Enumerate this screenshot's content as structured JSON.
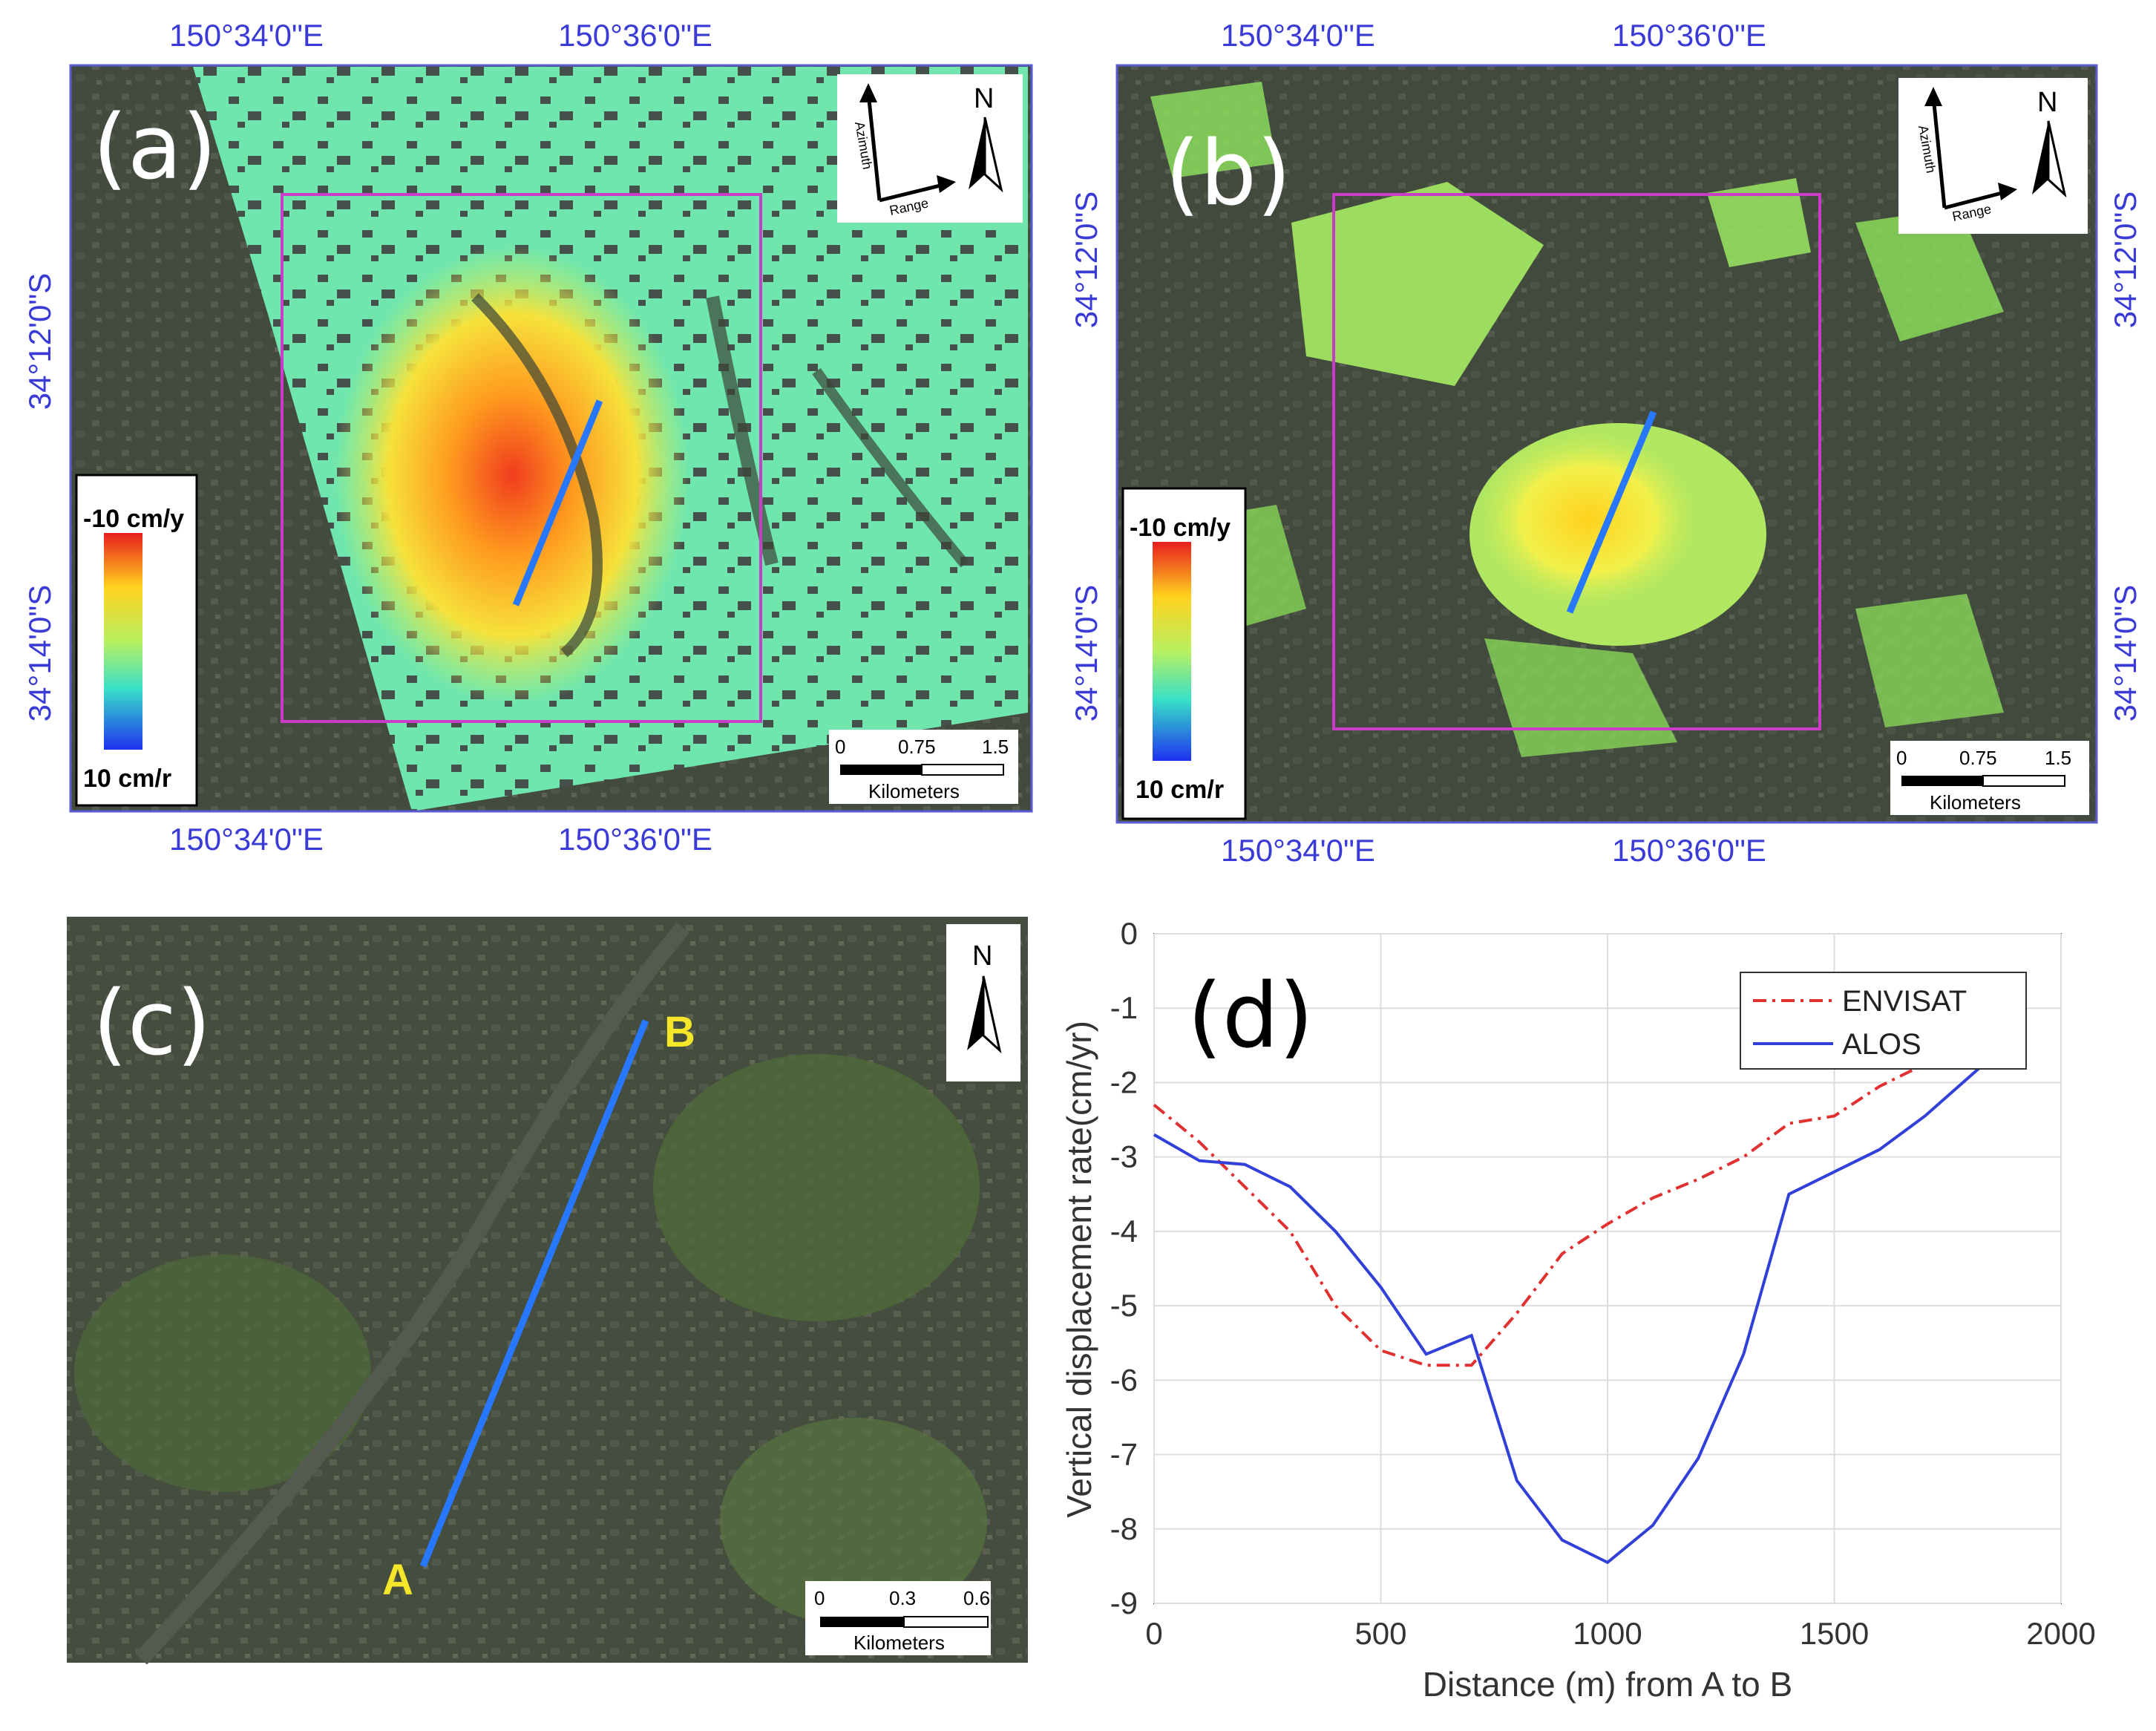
{
  "panels": {
    "a": {
      "label": "(a)",
      "top_lon": [
        "150°34'0\"E",
        "150°36'0\"E"
      ],
      "bottom_lon": [
        "150°34'0\"E",
        "150°36'0\"E"
      ],
      "left_lat": [
        "34°12'0\"S",
        "34°14'0\"S"
      ],
      "colorbar": {
        "top": "-10 cm/y",
        "bottom": "10 cm/r"
      },
      "scalebar": {
        "ticks": [
          "0",
          "0.75",
          "1.5"
        ],
        "unit": "Kilometers"
      },
      "north": "N",
      "azimuth": "Azimuth",
      "range": "Range"
    },
    "b": {
      "label": "(b)",
      "top_lon": [
        "150°34'0\"E",
        "150°36'0\"E"
      ],
      "bottom_lon": [
        "150°34'0\"E",
        "150°36'0\"E"
      ],
      "left_lat": [
        "34°12'0\"S",
        "34°14'0\"S"
      ],
      "right_lat": [
        "34°12'0\"S",
        "34°14'0\"S"
      ],
      "colorbar": {
        "top": "-10 cm/y",
        "bottom": "10 cm/r"
      },
      "scalebar": {
        "ticks": [
          "0",
          "0.75",
          "1.5"
        ],
        "unit": "Kilometers"
      },
      "north": "N",
      "azimuth": "Azimuth",
      "range": "Range"
    },
    "c": {
      "label": "(c)",
      "point_a": "A",
      "point_b": "B",
      "scalebar": {
        "ticks": [
          "0",
          "0.3",
          "0.6"
        ],
        "unit": "Kilometers"
      },
      "north": "N"
    },
    "d": {
      "label": "(d)"
    }
  },
  "chart_data": {
    "type": "line",
    "xlabel": "Distance (m) from A to B",
    "ylabel": "Vertical displacement rate(cm/yr)",
    "xlim": [
      0,
      2000
    ],
    "ylim": [
      -9,
      0
    ],
    "xticks": [
      "0",
      "500",
      "1000",
      "1500",
      "2000"
    ],
    "yticks": [
      "0",
      "-1",
      "-2",
      "-3",
      "-4",
      "-5",
      "-6",
      "-7",
      "-8",
      "-9"
    ],
    "grid": true,
    "legend_position": "top-right",
    "series": [
      {
        "name": "ENVISAT",
        "color": "#e03030",
        "style": "dashdot",
        "x": [
          0,
          100,
          200,
          300,
          400,
          500,
          600,
          700,
          800,
          900,
          1000,
          1100,
          1200,
          1300,
          1400,
          1500,
          1600,
          1700,
          1800
        ],
        "y": [
          -2.3,
          -2.8,
          -3.4,
          -4.0,
          -5.0,
          -5.6,
          -5.8,
          -5.8,
          -5.1,
          -4.3,
          -3.9,
          -3.55,
          -3.3,
          -3.0,
          -2.55,
          -2.45,
          -2.05,
          -1.75,
          -1.6
        ]
      },
      {
        "name": "ALOS",
        "color": "#3040d8",
        "style": "solid",
        "x": [
          0,
          100,
          200,
          300,
          400,
          500,
          600,
          700,
          800,
          900,
          1000,
          1100,
          1200,
          1300,
          1400,
          1500,
          1600,
          1700,
          1830
        ],
        "y": [
          -2.7,
          -3.05,
          -3.1,
          -3.4,
          -4.0,
          -4.75,
          -5.65,
          -5.4,
          -7.35,
          -8.15,
          -8.45,
          -7.95,
          -7.05,
          -5.65,
          -3.5,
          -3.2,
          -2.9,
          -2.45,
          -1.75
        ]
      }
    ]
  }
}
